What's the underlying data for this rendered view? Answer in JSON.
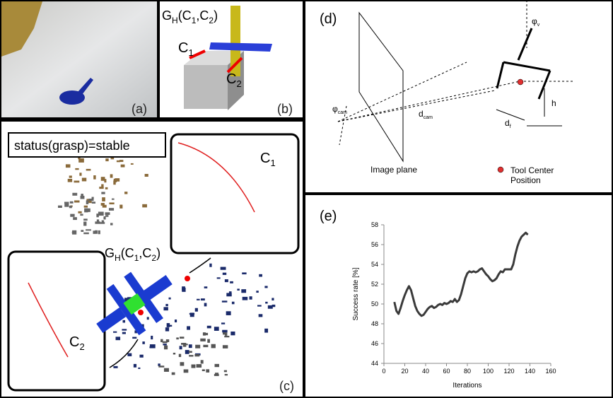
{
  "panels": {
    "a": {
      "label": "(a)"
    },
    "b": {
      "label": "(b)",
      "grasp": [
        "G",
        "H",
        "(C",
        "1",
        ",C",
        "2",
        ")"
      ],
      "c1": [
        "C",
        "1"
      ],
      "c2": [
        "C",
        "2"
      ]
    },
    "c": {
      "label": "(c)",
      "status": "status(grasp)=stable",
      "grasp": [
        "G",
        "H",
        "(C",
        "1",
        ",C",
        "2",
        ")"
      ],
      "c1": [
        "C",
        "1"
      ],
      "c2": [
        "C",
        "2"
      ]
    },
    "d": {
      "label": "(d)",
      "phi_v": [
        "φ",
        "v"
      ],
      "phi_cam": [
        "φ",
        "cam"
      ],
      "d_cam": [
        "d",
        "cam"
      ],
      "h": "h",
      "d_f": [
        "d",
        "f"
      ],
      "image_plane": "Image plane",
      "tool_center": [
        "Tool Center",
        "Position"
      ]
    }
  },
  "chart_data": {
    "type": "line",
    "label": "(e)",
    "x_label": "Iterations",
    "y_label": "Success rate [%]",
    "x": [
      10,
      12,
      14,
      16,
      18,
      20,
      22,
      24,
      26,
      28,
      30,
      32,
      34,
      36,
      38,
      40,
      42,
      44,
      46,
      48,
      50,
      52,
      54,
      56,
      58,
      60,
      62,
      64,
      66,
      68,
      70,
      72,
      74,
      76,
      78,
      80,
      82,
      84,
      86,
      88,
      90,
      92,
      94,
      96,
      98,
      100,
      102,
      104,
      106,
      108,
      110,
      112,
      114,
      116,
      118,
      120,
      122,
      124,
      126,
      128,
      130,
      132,
      134,
      136,
      138
    ],
    "values": [
      50.2,
      49.3,
      49.0,
      49.6,
      50.3,
      50.9,
      51.4,
      51.8,
      51.4,
      50.6,
      49.8,
      49.3,
      49.0,
      48.8,
      48.9,
      49.2,
      49.5,
      49.7,
      49.8,
      49.6,
      49.7,
      49.9,
      50.0,
      49.9,
      50.1,
      50.0,
      50.1,
      50.3,
      50.2,
      50.5,
      50.2,
      50.4,
      51.0,
      51.8,
      52.6,
      53.1,
      53.3,
      53.2,
      53.3,
      53.2,
      53.3,
      53.5,
      53.6,
      53.3,
      53.0,
      52.8,
      52.5,
      52.3,
      52.4,
      52.6,
      53.0,
      53.3,
      53.2,
      53.5,
      53.5,
      53.5,
      53.5,
      54.0,
      55.0,
      55.8,
      56.4,
      56.8,
      57.0,
      57.2,
      57.0
    ],
    "color": "#3a3a3a",
    "xlim": [
      0,
      160
    ],
    "xticks": [
      0,
      20,
      40,
      60,
      80,
      100,
      120,
      140,
      160
    ],
    "ylim": [
      44,
      58
    ],
    "yticks": [
      44,
      46,
      48,
      50,
      52,
      54,
      56,
      58
    ]
  }
}
